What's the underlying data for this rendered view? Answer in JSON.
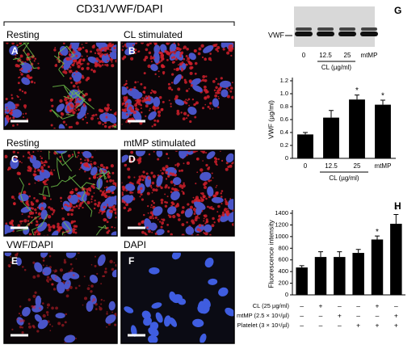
{
  "figure_title": "CD31/VWF/DAPI",
  "panels": [
    {
      "letter": "A",
      "label": "Resting"
    },
    {
      "letter": "B",
      "label": "CL stimulated"
    },
    {
      "letter": "C",
      "label": "Resting"
    },
    {
      "letter": "D",
      "label": "mtMP stimulated"
    },
    {
      "letter": "E",
      "label": "VWF/DAPI"
    },
    {
      "letter": "F",
      "label": "DAPI"
    }
  ],
  "blot": {
    "letter": "G",
    "protein": "VWF",
    "lanes": [
      "0",
      "12.5",
      "25",
      "mtMP"
    ],
    "group_label": "CL (µg/ml)"
  },
  "chart_data": [
    {
      "type": "bar",
      "ylabel": "VWF (µg/ml)",
      "categories": [
        "0",
        "12.5",
        "25",
        "mtMP"
      ],
      "group_label": "CL (µg/ml)",
      "values": [
        0.37,
        0.63,
        0.91,
        0.83
      ],
      "errors": [
        0.03,
        0.11,
        0.07,
        0.07
      ],
      "significance": [
        null,
        null,
        "*",
        "*"
      ],
      "color": "#000000",
      "ylim": [
        0,
        1.2
      ],
      "yticks": [
        0,
        0.2,
        0.4,
        0.6,
        0.8,
        {
          "value": 1,
          "label": "1.0"
        },
        1.2
      ]
    },
    {
      "type": "bar",
      "letter": "H",
      "ylabel": "Fluorescence intensity",
      "values": [
        470,
        650,
        650,
        720,
        950,
        1220
      ],
      "errors": [
        30,
        90,
        90,
        60,
        60,
        160
      ],
      "significance": [
        null,
        null,
        null,
        null,
        "*",
        "*"
      ],
      "color": "#000000",
      "ylim": [
        0,
        1400
      ],
      "yticks": [
        0,
        200,
        400,
        600,
        800,
        1000,
        1200,
        1400
      ],
      "conditions": [
        {
          "label": "CL (25 µg/ml)",
          "values": [
            "–",
            "+",
            "–",
            "–",
            "+",
            "–"
          ]
        },
        {
          "label": "mtMP (2.5 × 10⁶/µl)",
          "values": [
            "–",
            "–",
            "+",
            "–",
            "–",
            "+"
          ]
        },
        {
          "label": "Platelet (3 × 10⁶/µl)",
          "values": [
            "–",
            "–",
            "–",
            "+",
            "+",
            "+"
          ]
        }
      ]
    }
  ]
}
